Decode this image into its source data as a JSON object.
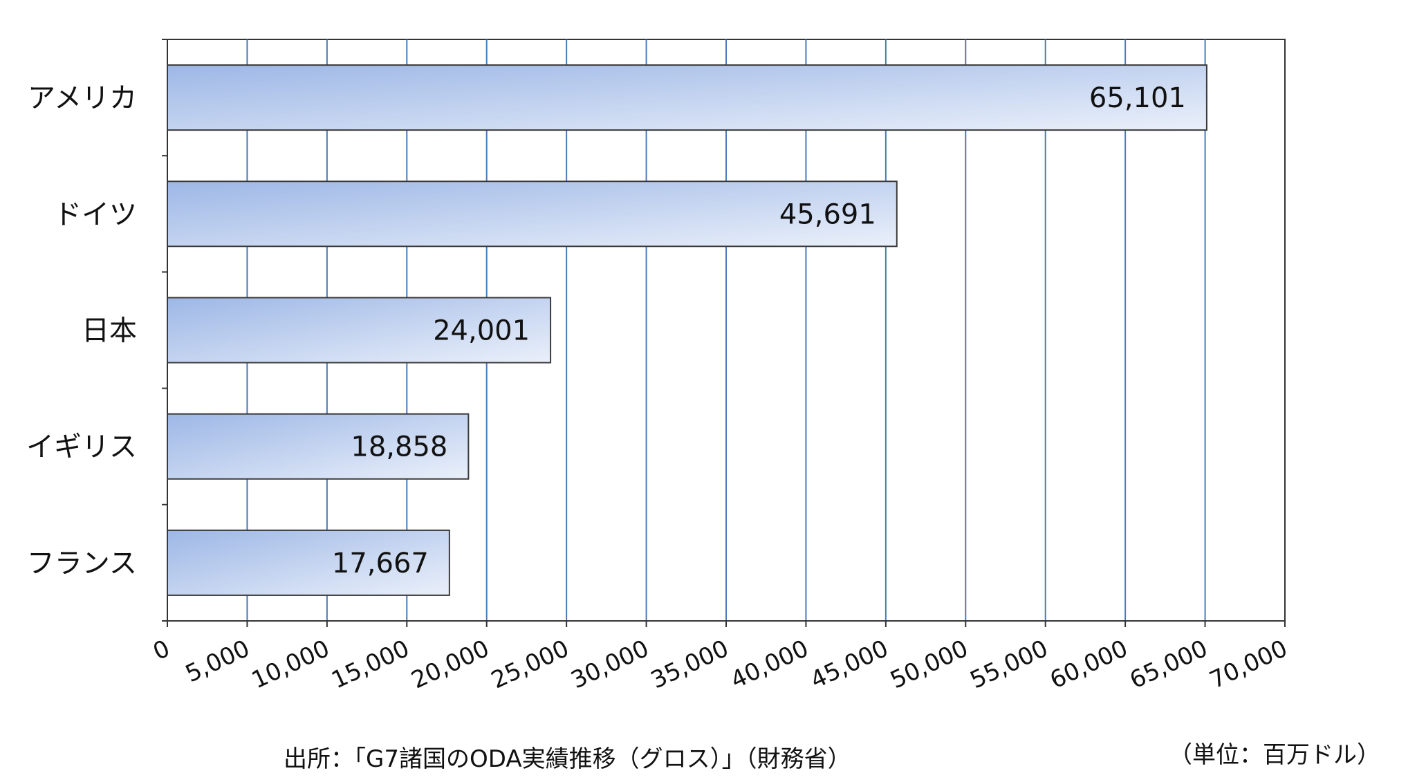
{
  "chart_data": {
    "type": "bar",
    "orientation": "horizontal",
    "categories": [
      "アメリカ",
      "ドイツ",
      "日本",
      "イギリス",
      "フランス"
    ],
    "values": [
      65101,
      45691,
      24001,
      18858,
      17667
    ],
    "value_labels": [
      "65,101",
      "45,691",
      "24,001",
      "18,858",
      "17,667"
    ],
    "xlim": [
      0,
      70000
    ],
    "x_ticks": [
      0,
      5000,
      10000,
      15000,
      20000,
      25000,
      30000,
      35000,
      40000,
      45000,
      50000,
      55000,
      60000,
      65000,
      70000
    ],
    "x_tick_labels": [
      "0",
      "5,000",
      "10,000",
      "15,000",
      "20,000",
      "25,000",
      "30,000",
      "35,000",
      "40,000",
      "45,000",
      "50,000",
      "55,000",
      "60,000",
      "65,000",
      "70,000"
    ],
    "grid": "vertical",
    "bar_gradient": [
      "#9db7e6",
      "#eaf0fa"
    ],
    "gridline_color": "#4a7ab5"
  },
  "footer": {
    "source": "出所：「G7諸国のODA実績推移（グロス）」（財務省）",
    "unit": "（単位：百万ドル）"
  }
}
